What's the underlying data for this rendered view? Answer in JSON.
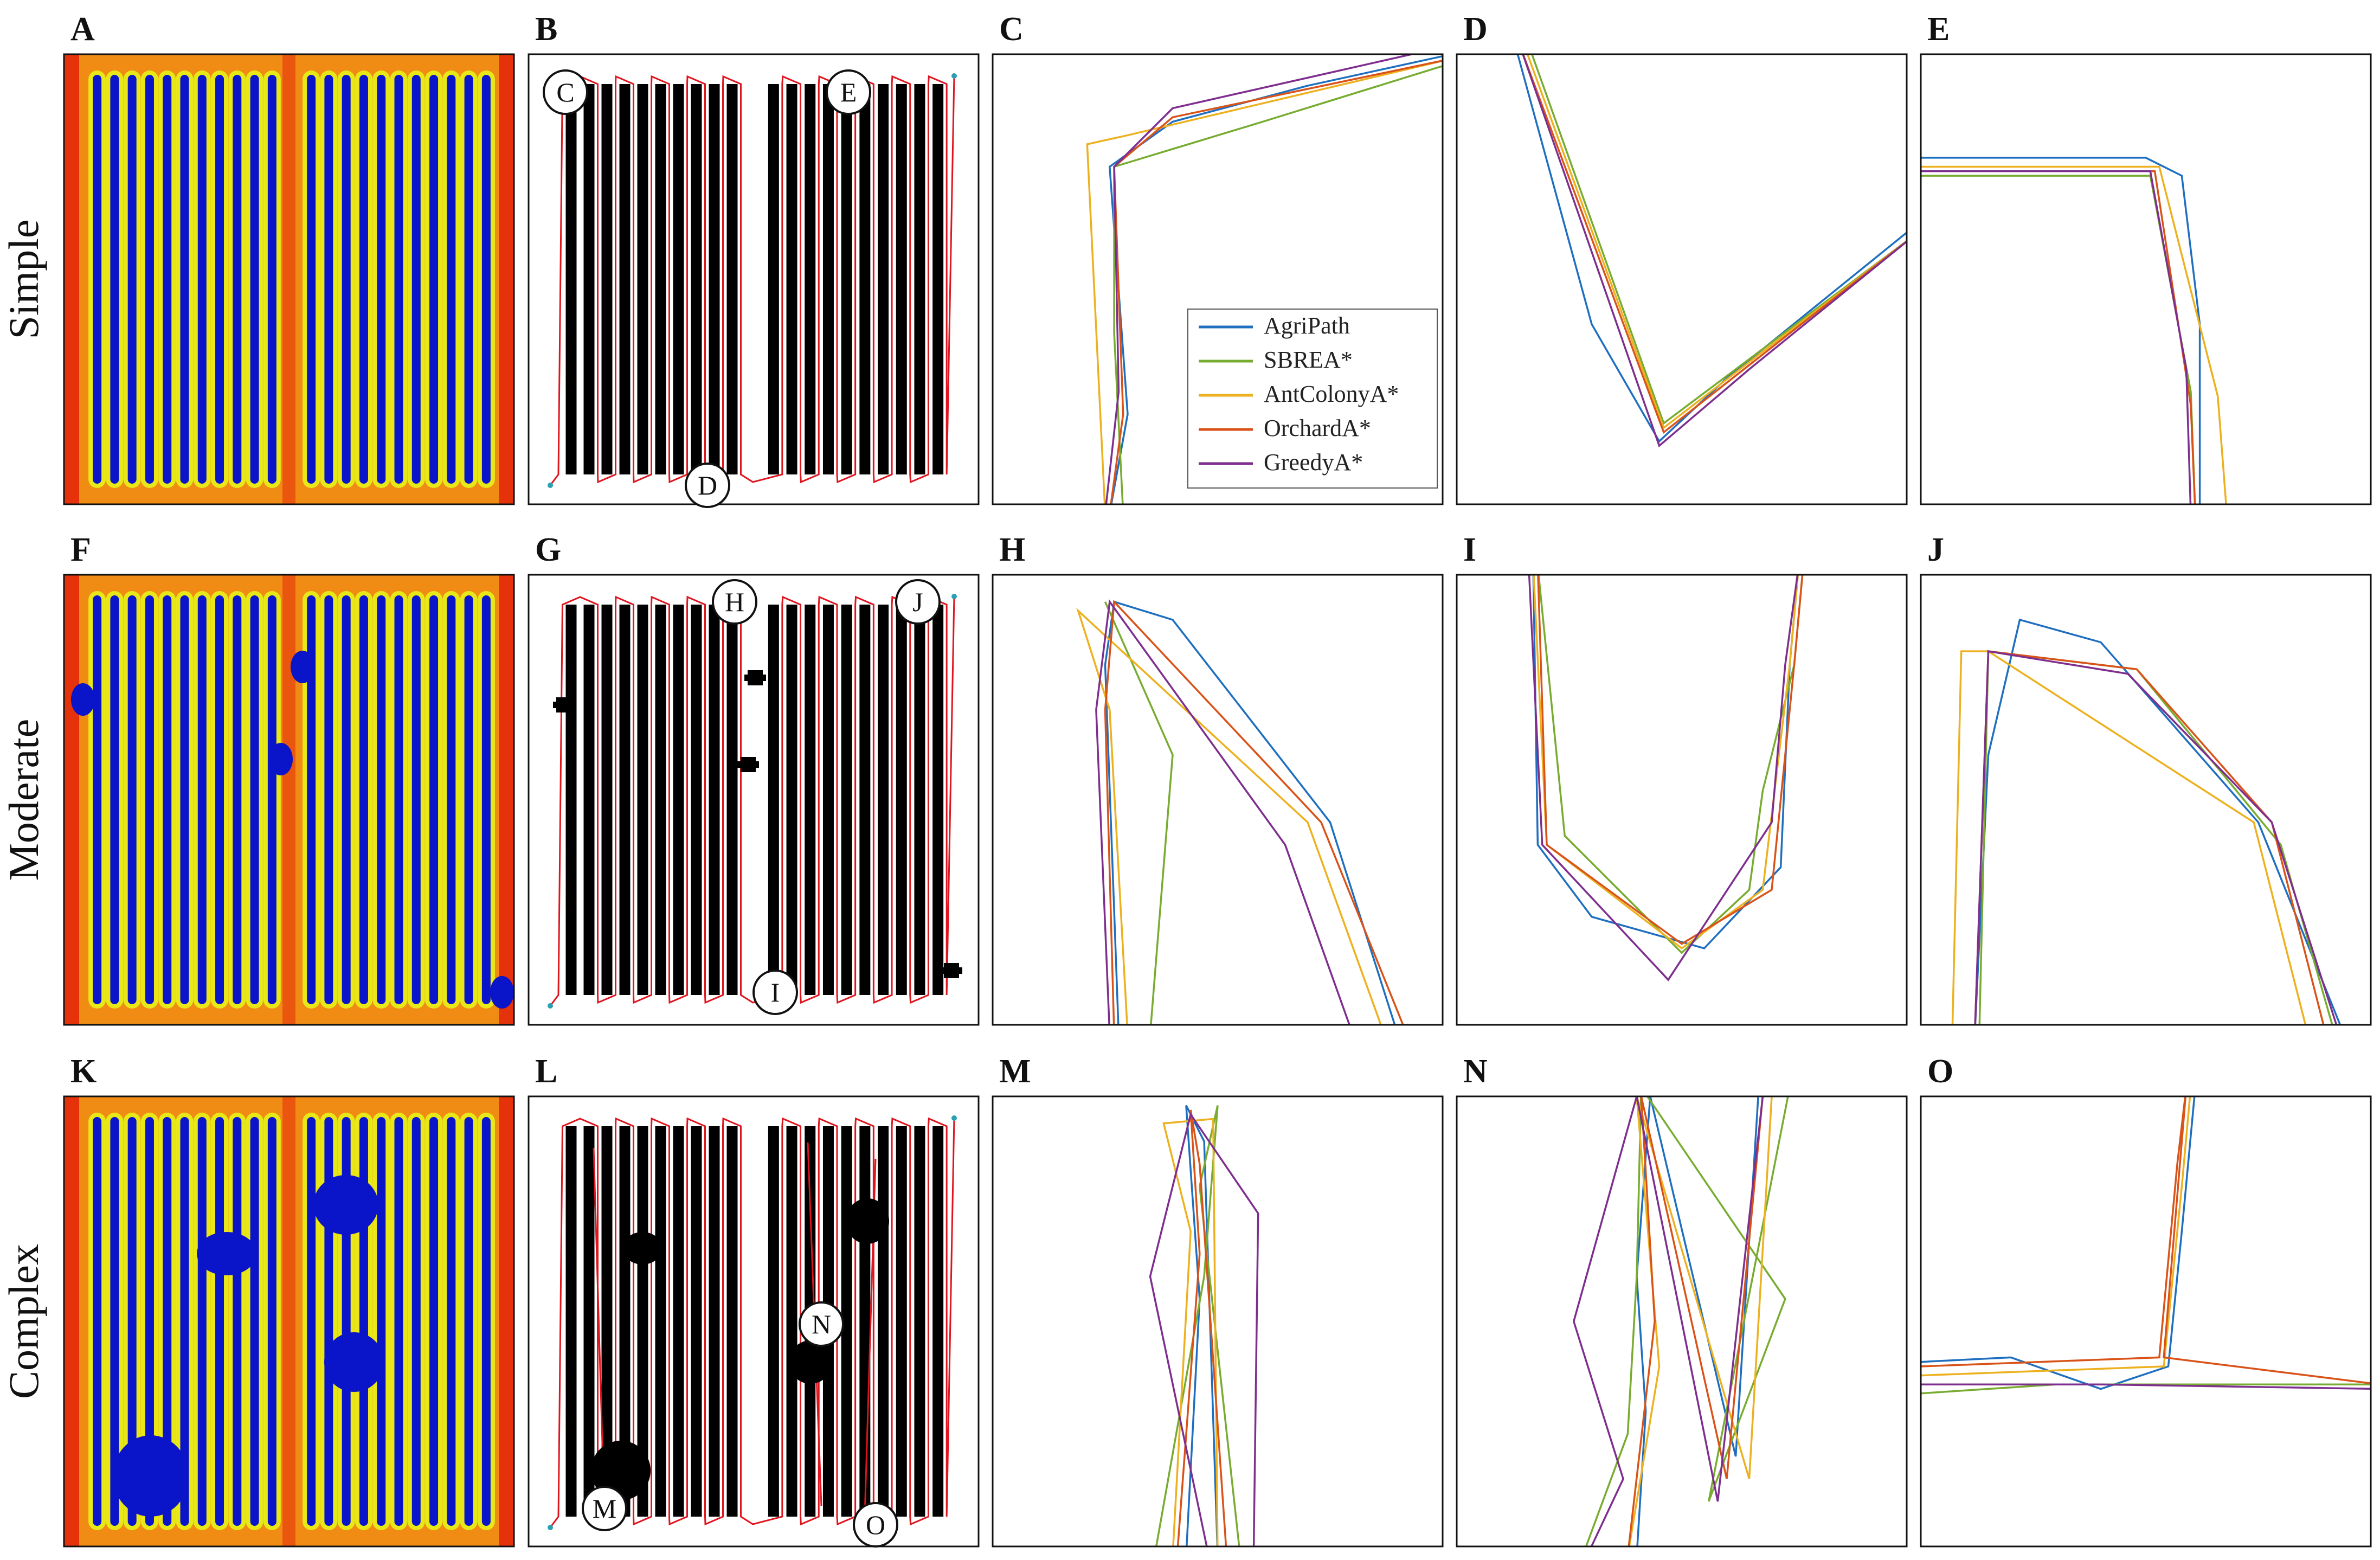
{
  "panel_letters": [
    "A",
    "B",
    "C",
    "D",
    "E",
    "F",
    "G",
    "H",
    "I",
    "J",
    "K",
    "L",
    "M",
    "N",
    "O"
  ],
  "row_labels": [
    "Simple",
    "Moderate",
    "Complex"
  ],
  "legend": [
    {
      "name": "AgriPath",
      "color": "#1f6fc0"
    },
    {
      "name": "SBREA*",
      "color": "#77ac30"
    },
    {
      "name": "AntColonyA*",
      "color": "#edb120"
    },
    {
      "name": "OrchardA*",
      "color": "#d95319"
    },
    {
      "name": "GreedyA*",
      "color": "#7e2f8e"
    }
  ],
  "heatmap_colors": {
    "blue": "#0a14c8",
    "yellow": "#e8e818",
    "orange": "#f08c14",
    "red": "#e6320a"
  },
  "path_color": "#e0141e",
  "markers": {
    "simple": [
      "C",
      "D",
      "E"
    ],
    "moderate": [
      "H",
      "I",
      "J"
    ],
    "complex": [
      "M",
      "N",
      "O"
    ]
  }
}
